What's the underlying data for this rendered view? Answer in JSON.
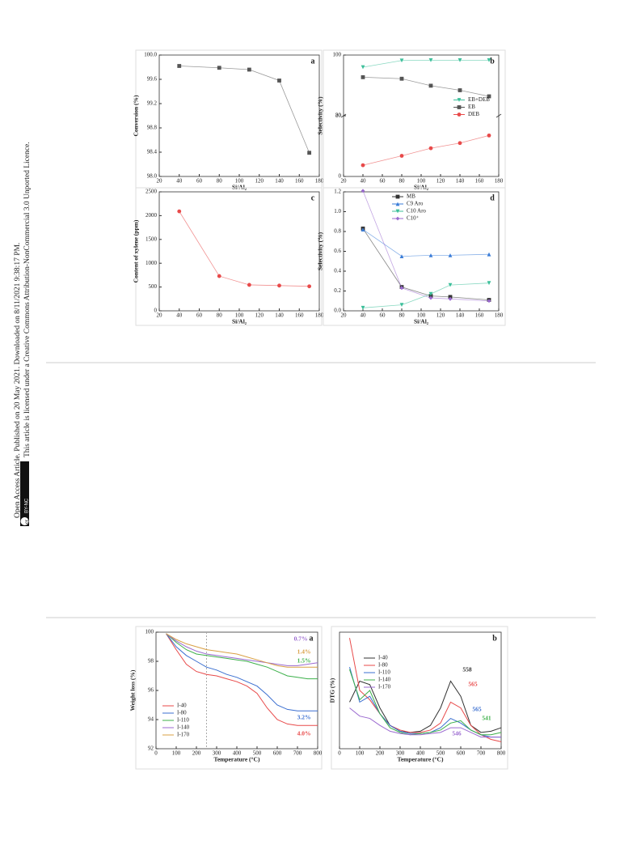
{
  "sidebar": {
    "line1": "Open Access Article. Published on 20 May 2021. Downloaded on 8/11/2021 9:38:17 PM.",
    "line2": "This article is licensed under a Creative Commons Attribution-NonCommercial 3.0 Unported Licence.",
    "badge_cc": "cc",
    "badge_license": "BY-NC"
  },
  "chart_data": [
    {
      "type": "line",
      "label": "a",
      "xlabel": "Si/Al₂",
      "ylabel": "Conversion (%)",
      "xlim": [
        20,
        180
      ],
      "xticks": [
        20,
        40,
        60,
        80,
        100,
        120,
        140,
        160,
        180
      ],
      "ylim": [
        98,
        100
      ],
      "yticks": [
        {
          "value": 98,
          "label": "98.0"
        },
        98.4,
        98.8,
        99.2,
        99.6,
        {
          "value": 100,
          "label": "100.0"
        }
      ],
      "x": [
        40,
        80,
        110,
        140,
        170
      ],
      "series": [
        {
          "name": null,
          "color": "#555555",
          "marker": "square",
          "values": [
            99.82,
            99.79,
            99.76,
            99.58,
            98.39
          ]
        }
      ]
    },
    {
      "type": "line",
      "label": "b",
      "xlabel": "Si/Al₂",
      "ylabel": "Selectivity (%)",
      "xlim": [
        20,
        180
      ],
      "xticks": [
        20,
        40,
        60,
        80,
        100,
        120,
        140,
        160,
        180
      ],
      "ylim": [
        0,
        100
      ],
      "ybreak": [
        20,
        80
      ],
      "yticks": [
        0,
        20,
        80,
        100
      ],
      "legend": "center right",
      "x": [
        40,
        80,
        110,
        140,
        170
      ],
      "series": [
        {
          "name": "EB+DEB",
          "color": "#3cbf9a",
          "marker": "down",
          "values": [
            96.0,
            98.2,
            98.3,
            98.3,
            98.3
          ]
        },
        {
          "name": "EB",
          "color": "#555555",
          "marker": "square",
          "values": [
            92.7,
            92.2,
            89.9,
            88.4,
            86.4
          ]
        },
        {
          "name": "DEB",
          "color": "#e84a4a",
          "marker": "circle",
          "values": [
            3.7,
            6.8,
            9.3,
            11.0,
            13.5
          ]
        }
      ]
    },
    {
      "type": "line",
      "label": "c",
      "xlabel": "Si/Al₂",
      "ylabel": "Content of xylene (ppm)",
      "xlim": [
        20,
        180
      ],
      "xticks": [
        20,
        40,
        60,
        80,
        100,
        120,
        140,
        160,
        180
      ],
      "ylim": [
        0,
        2500
      ],
      "yticks": [
        0,
        500,
        1000,
        1500,
        2000,
        2500
      ],
      "x": [
        40,
        80,
        110,
        140,
        170
      ],
      "series": [
        {
          "name": null,
          "color": "#e84a4a",
          "marker": "circle",
          "values": [
            2090,
            730,
            545,
            530,
            515
          ]
        }
      ]
    },
    {
      "type": "line",
      "label": "d",
      "xlabel": "Si/Al₂",
      "ylabel": "Selectivity (%)",
      "xlim": [
        20,
        180
      ],
      "xticks": [
        20,
        40,
        60,
        80,
        100,
        120,
        140,
        160,
        180
      ],
      "ylim": [
        0,
        1.2
      ],
      "yticks": [
        {
          "value": 0,
          "label": "0.0"
        },
        0.2,
        0.4,
        0.6,
        0.8,
        {
          "value": 1,
          "label": "1.0"
        },
        1.2
      ],
      "legend": "upper center",
      "x": [
        40,
        80,
        110,
        130,
        170
      ],
      "series": [
        {
          "name": "MB",
          "color": "#333333",
          "marker": "square",
          "values": [
            0.83,
            0.24,
            0.15,
            0.14,
            0.11
          ]
        },
        {
          "name": "C9 Aro",
          "color": "#3b7dd8",
          "marker": "up",
          "values": [
            0.82,
            0.55,
            0.56,
            0.56,
            0.57
          ]
        },
        {
          "name": "C10 Aro",
          "color": "#3cbf9a",
          "marker": "down",
          "values": [
            0.03,
            0.06,
            0.17,
            0.26,
            0.28
          ]
        },
        {
          "name": "C10⁺",
          "color": "#9b6ad0",
          "marker": "diamond",
          "values": [
            1.21,
            0.23,
            0.13,
            0.12,
            0.1
          ]
        }
      ]
    },
    {
      "type": "line",
      "label": "a",
      "xlabel": "Temperature (°C)",
      "ylabel": "Weight loss (%)",
      "xlim": [
        0,
        800
      ],
      "xticks": [
        0,
        100,
        200,
        300,
        400,
        500,
        600,
        700,
        800
      ],
      "ylim": [
        92,
        100
      ],
      "yticks": [
        92,
        94,
        96,
        98,
        100
      ],
      "legend": "lower left",
      "vline": 250,
      "x": [
        50,
        100,
        150,
        200,
        250,
        300,
        350,
        400,
        450,
        500,
        550,
        600,
        650,
        700,
        750,
        800
      ],
      "series": [
        {
          "name": "I-40",
          "color": "#e84a4a",
          "values": [
            99.9,
            98.8,
            97.8,
            97.3,
            97.1,
            97.0,
            96.8,
            96.6,
            96.3,
            95.8,
            94.8,
            94.0,
            93.7,
            93.6,
            93.6,
            93.6
          ]
        },
        {
          "name": "I-80",
          "color": "#3b6fd0",
          "values": [
            99.9,
            99.0,
            98.4,
            98.0,
            97.6,
            97.4,
            97.1,
            96.9,
            96.6,
            96.3,
            95.7,
            95.0,
            94.7,
            94.6,
            94.6,
            94.6
          ]
        },
        {
          "name": "I-110",
          "color": "#3cb04a",
          "values": [
            99.9,
            99.3,
            98.8,
            98.5,
            98.4,
            98.3,
            98.2,
            98.1,
            98.0,
            97.8,
            97.6,
            97.3,
            97.0,
            96.9,
            96.8,
            96.8
          ]
        },
        {
          "name": "I-140",
          "color": "#9b6ad0",
          "values": [
            99.9,
            99.4,
            99.0,
            98.7,
            98.5,
            98.4,
            98.3,
            98.2,
            98.1,
            98.0,
            97.9,
            97.8,
            97.7,
            97.7,
            97.8,
            97.9
          ]
        },
        {
          "name": "I-170",
          "color": "#d9a045",
          "values": [
            99.9,
            99.5,
            99.2,
            99.0,
            98.8,
            98.7,
            98.6,
            98.5,
            98.3,
            98.1,
            97.9,
            97.7,
            97.6,
            97.6,
            97.6,
            97.6
          ]
        }
      ],
      "annotations": [
        {
          "text": "0.7%",
          "color": "#9b6ad0"
        },
        {
          "text": "1.4%",
          "color": "#d9a045"
        },
        {
          "text": "1.5%",
          "color": "#3cb04a"
        },
        {
          "text": "3.2%",
          "color": "#3b6fd0"
        },
        {
          "text": "4.0%",
          "color": "#e84a4a"
        }
      ]
    },
    {
      "type": "line",
      "label": "b",
      "xlabel": "Temperature (°C)",
      "ylabel": "DTG (%)",
      "xlim": [
        0,
        800
      ],
      "xticks": [
        0,
        100,
        200,
        300,
        400,
        500,
        600,
        700,
        800
      ],
      "ylim": [
        0,
        100
      ],
      "legend": "upper left",
      "x": [
        50,
        100,
        150,
        200,
        250,
        300,
        350,
        400,
        450,
        500,
        550,
        600,
        650,
        700,
        750,
        800
      ],
      "series": [
        {
          "name": "I-40",
          "color": "#333333",
          "values": [
            40,
            58,
            55,
            35,
            20,
            15,
            14,
            15,
            20,
            35,
            58,
            45,
            20,
            14,
            15,
            18
          ]
        },
        {
          "name": "I-80",
          "color": "#e84a4a",
          "values": [
            95,
            50,
            42,
            30,
            20,
            16,
            14,
            14,
            16,
            22,
            40,
            35,
            20,
            12,
            8,
            6
          ]
        },
        {
          "name": "I-110",
          "color": "#3b6fd0",
          "values": [
            70,
            40,
            45,
            30,
            20,
            15,
            13,
            13,
            14,
            18,
            26,
            22,
            16,
            12,
            10,
            10
          ]
        },
        {
          "name": "I-140",
          "color": "#3cb04a",
          "values": [
            68,
            42,
            50,
            30,
            18,
            14,
            12,
            13,
            14,
            16,
            22,
            24,
            16,
            12,
            12,
            14
          ]
        },
        {
          "name": "I-170",
          "color": "#9b6ad0",
          "values": [
            35,
            28,
            26,
            20,
            15,
            13,
            12,
            12,
            13,
            14,
            18,
            18,
            14,
            10,
            10,
            10
          ]
        }
      ],
      "annotations": [
        {
          "text": "558",
          "color": "#333333"
        },
        {
          "text": "565",
          "color": "#e84a4a"
        },
        {
          "text": "565",
          "color": "#3b6fd0"
        },
        {
          "text": "541",
          "color": "#3cb04a"
        },
        {
          "text": "546",
          "color": "#9b6ad0"
        }
      ]
    }
  ]
}
